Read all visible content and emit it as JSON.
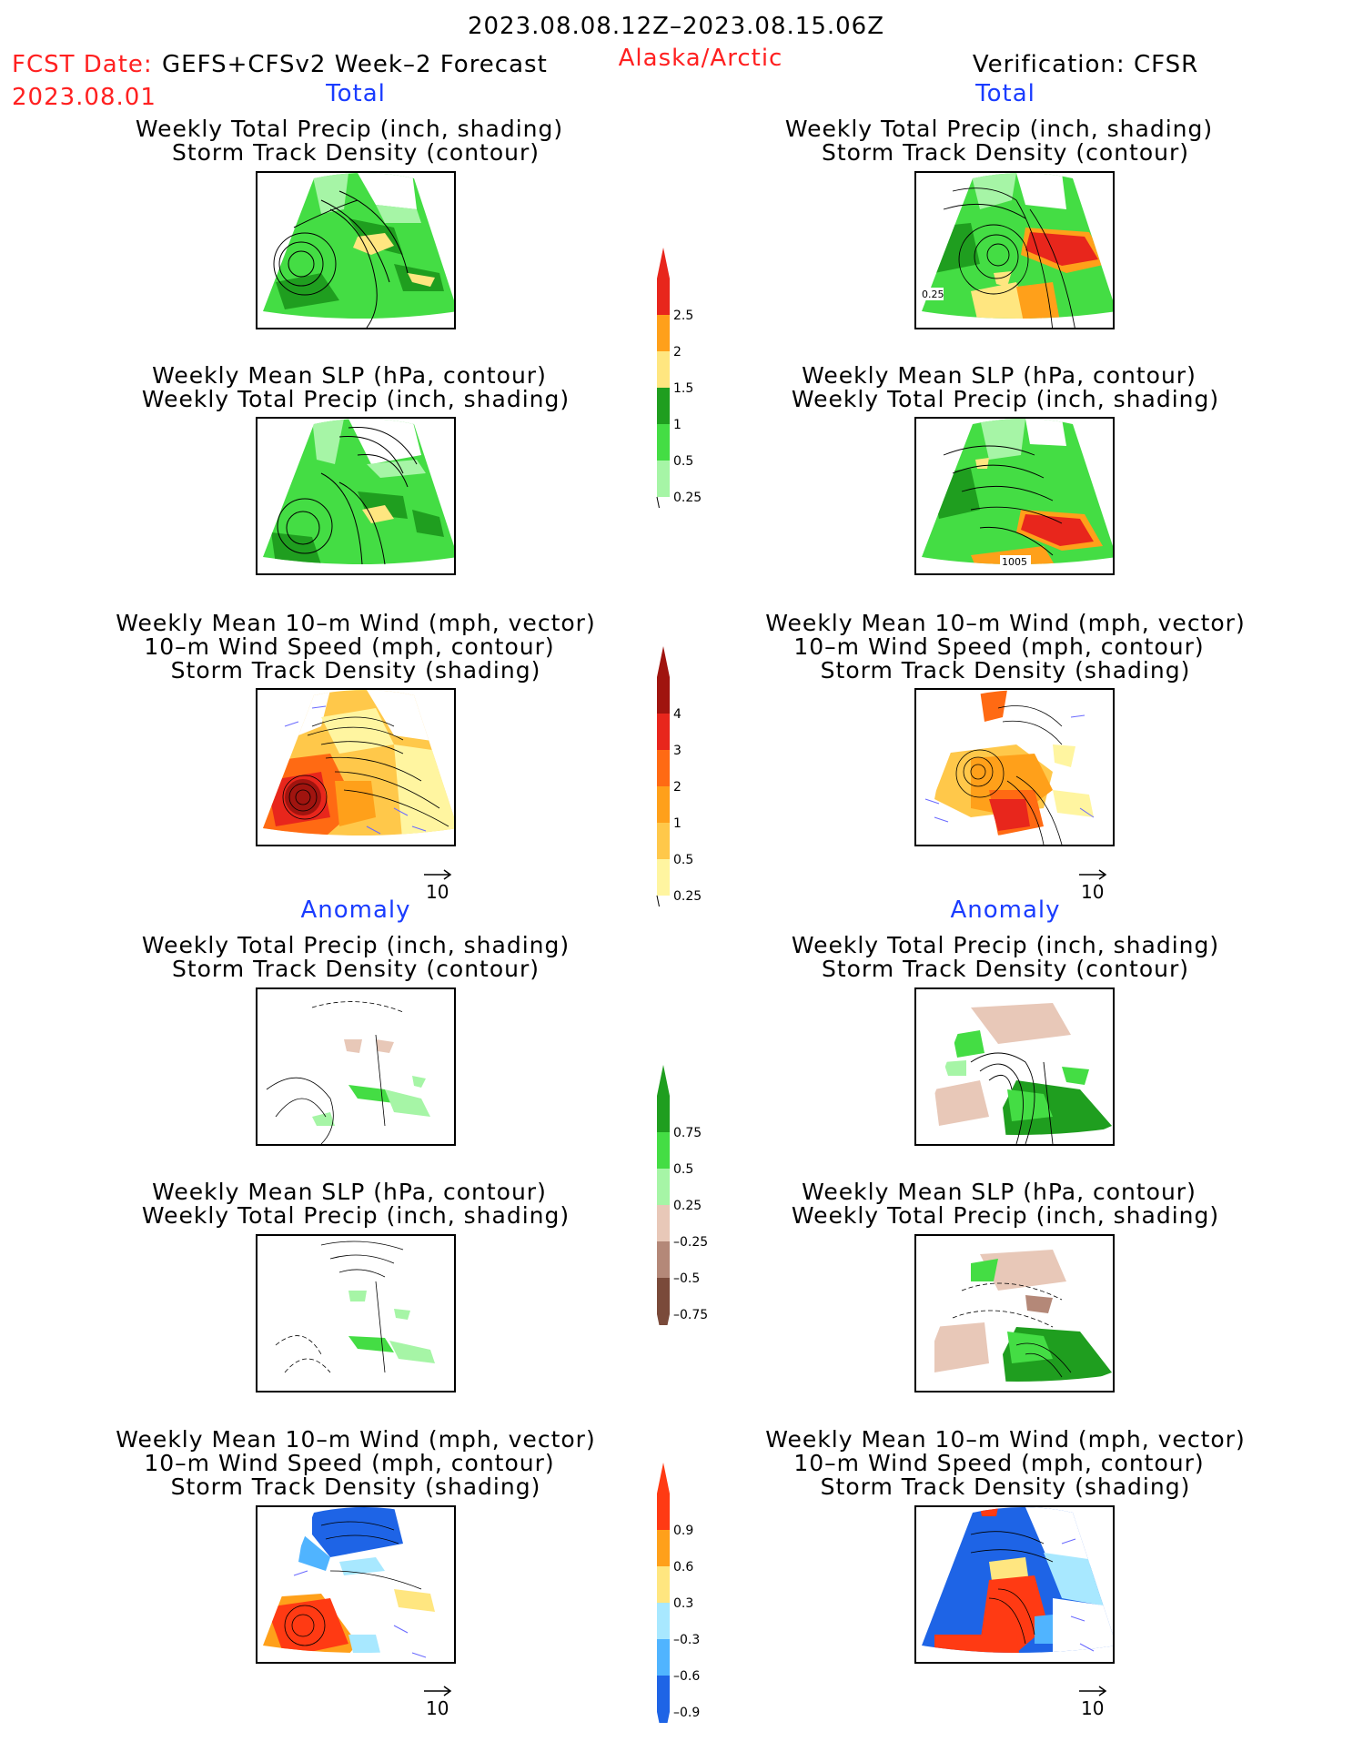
{
  "header": {
    "period": "2023.08.08.12Z–2023.08.15.06Z",
    "fcst_prefix": "FCST Date:",
    "fcst_model": "GEFS+CFSv2 Week–2 Forecast",
    "fcst_date": "2023.08.01",
    "region": "Alaska/Arctic",
    "verification": "Verification: CFSR"
  },
  "sections": {
    "total": "Total",
    "anomaly": "Anomaly"
  },
  "panels": {
    "precip_storm": [
      "Weekly Total Precip (inch, shading)",
      "Storm Track Density (contour)"
    ],
    "slp_precip": [
      "Weekly Mean SLP (hPa, contour)",
      "Weekly Total Precip (inch, shading)"
    ],
    "wind_storm": [
      "Weekly Mean 10–m Wind (mph, vector)",
      "10–m Wind Speed (mph, contour)",
      "Storm Track Density (shading)"
    ]
  },
  "map_labels": {
    "storm_contour": "0.25",
    "slp_contour": "1005"
  },
  "vector_ref": "10",
  "colorbars": {
    "total_precip": {
      "labels": [
        "2.5",
        "2",
        "1.5",
        "1",
        "0.5",
        "0.25"
      ],
      "colors": [
        "#e8261c",
        "#ffa01a",
        "#ffe680",
        "#1f9e1f",
        "#44dd44",
        "#a6f5a6"
      ]
    },
    "total_storm": {
      "labels": [
        "4",
        "3",
        "2",
        "1",
        "0.5",
        "0.25"
      ],
      "colors": [
        "#a0140f",
        "#e8261c",
        "#ff6a13",
        "#ffa01a",
        "#ffc84a",
        "#fff5a0"
      ]
    },
    "anom_precip": {
      "labels": [
        "0.75",
        "0.5",
        "0.25",
        "–0.25",
        "–0.5",
        "–0.75"
      ],
      "colors": [
        "#1f9e1f",
        "#44dd44",
        "#a6f5a6",
        "#e8c8b8",
        "#b48878",
        "#7a4a3a"
      ]
    },
    "anom_storm": {
      "labels": [
        "0.9",
        "0.6",
        "0.3",
        "–0.3",
        "–0.6",
        "–0.9"
      ],
      "colors": [
        "#ff3a13",
        "#ffa01a",
        "#ffe680",
        "#a8e8ff",
        "#50b4ff",
        "#1e64e6"
      ]
    }
  }
}
